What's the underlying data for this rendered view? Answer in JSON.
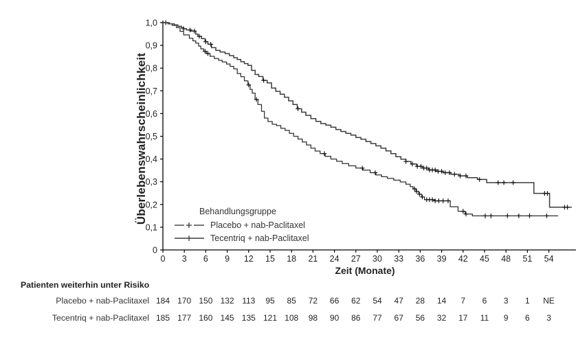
{
  "chart_data": {
    "type": "line",
    "subtype": "kaplan-meier-step",
    "title": "",
    "xlabel": "Zeit (Monate)",
    "ylabel": "Überlebenswahrscheinlichkeit",
    "xlim": [
      0,
      57.8
    ],
    "ylim": [
      0,
      1.0
    ],
    "grid": false,
    "x_ticks": [
      0,
      3,
      6,
      9,
      12,
      15,
      18,
      21,
      24,
      27,
      30,
      33,
      36,
      39,
      42,
      45,
      48,
      51,
      54
    ],
    "x_tick_labels": [
      "0",
      "3",
      "6",
      "9",
      "12",
      "15",
      "18",
      "21",
      "24",
      "27",
      "30",
      "33",
      "36",
      "39",
      "42",
      "45",
      "48",
      "51",
      "54"
    ],
    "y_ticks": [
      0,
      0.1,
      0.2,
      0.3,
      0.4,
      0.5,
      0.6,
      0.7,
      0.8,
      0.9,
      1.0
    ],
    "y_tick_labels": [
      "0",
      "0,1",
      "0,2",
      "0,3",
      "0,4",
      "0,5",
      "0,6",
      "0,7",
      "0,8",
      "0,9",
      "1,0"
    ],
    "legend": {
      "title": "Behandlungsgruppe",
      "position": "inside-lower-left"
    },
    "series": [
      {
        "name": "Placebo + nab-Paclitaxel",
        "legend_line_style": "dashed",
        "color": "#2e2e2e",
        "width": 1.25,
        "steps": [
          [
            0,
            1.0
          ],
          [
            0.7,
            0.995
          ],
          [
            1.3,
            0.988
          ],
          [
            1.9,
            0.978
          ],
          [
            2.4,
            0.962
          ],
          [
            2.9,
            0.946
          ],
          [
            3.7,
            0.931
          ],
          [
            4.2,
            0.92
          ],
          [
            4.6,
            0.91
          ],
          [
            5.0,
            0.897
          ],
          [
            5.3,
            0.885
          ],
          [
            5.7,
            0.874
          ],
          [
            6.1,
            0.864
          ],
          [
            6.6,
            0.852
          ],
          [
            7.2,
            0.842
          ],
          [
            7.8,
            0.834
          ],
          [
            8.3,
            0.827
          ],
          [
            8.9,
            0.818
          ],
          [
            9.4,
            0.808
          ],
          [
            9.9,
            0.797
          ],
          [
            10.4,
            0.776
          ],
          [
            10.9,
            0.762
          ],
          [
            11.4,
            0.744
          ],
          [
            11.9,
            0.726
          ],
          [
            12.2,
            0.706
          ],
          [
            12.5,
            0.69
          ],
          [
            12.9,
            0.662
          ],
          [
            13.3,
            0.64
          ],
          [
            13.8,
            0.61
          ],
          [
            14.2,
            0.58
          ],
          [
            14.7,
            0.565
          ],
          [
            15.3,
            0.553
          ],
          [
            15.9,
            0.547
          ],
          [
            16.5,
            0.535
          ],
          [
            17.1,
            0.526
          ],
          [
            17.7,
            0.513
          ],
          [
            18.3,
            0.5
          ],
          [
            18.9,
            0.488
          ],
          [
            19.5,
            0.475
          ],
          [
            20.1,
            0.462
          ],
          [
            20.7,
            0.448
          ],
          [
            21.3,
            0.435
          ],
          [
            22.0,
            0.424
          ],
          [
            22.7,
            0.412
          ],
          [
            23.5,
            0.4
          ],
          [
            24.3,
            0.39
          ],
          [
            25.1,
            0.38
          ],
          [
            26.0,
            0.37
          ],
          [
            27.0,
            0.36
          ],
          [
            28.0,
            0.351
          ],
          [
            29.0,
            0.34
          ],
          [
            29.8,
            0.33
          ],
          [
            30.6,
            0.322
          ],
          [
            31.4,
            0.315
          ],
          [
            32.3,
            0.307
          ],
          [
            33.2,
            0.299
          ],
          [
            34.0,
            0.289
          ],
          [
            34.6,
            0.279
          ],
          [
            35.0,
            0.269
          ],
          [
            35.4,
            0.257
          ],
          [
            35.8,
            0.245
          ],
          [
            36.2,
            0.233
          ],
          [
            36.6,
            0.221
          ],
          [
            38.0,
            0.216
          ],
          [
            40.2,
            0.19
          ],
          [
            41.3,
            0.17
          ],
          [
            42.3,
            0.158
          ],
          [
            43.3,
            0.15
          ],
          [
            55.3,
            0.15
          ]
        ],
        "censor_months": [
          0.4,
          5.9,
          6.3,
          12.0,
          13.1,
          22.6,
          27.9,
          29.7,
          35.2,
          35.5,
          35.9,
          36.3,
          36.9,
          37.3,
          37.7,
          38.1,
          38.6,
          39.2,
          39.9,
          42.0,
          42.4,
          45.1,
          45.9,
          48.2,
          49.8,
          51.3,
          53.7
        ]
      },
      {
        "name": "Tecentriq + nab-Paclitaxel",
        "legend_line_style": "solid",
        "color": "#3c3c3c",
        "width": 1.5,
        "steps": [
          [
            0,
            1.0
          ],
          [
            0.9,
            0.995
          ],
          [
            1.6,
            0.99
          ],
          [
            2.1,
            0.984
          ],
          [
            2.6,
            0.978
          ],
          [
            2.9,
            0.973
          ],
          [
            3.3,
            0.968
          ],
          [
            3.9,
            0.963
          ],
          [
            4.6,
            0.95
          ],
          [
            4.9,
            0.94
          ],
          [
            5.4,
            0.93
          ],
          [
            5.9,
            0.916
          ],
          [
            6.3,
            0.905
          ],
          [
            6.8,
            0.89
          ],
          [
            7.4,
            0.878
          ],
          [
            8.0,
            0.871
          ],
          [
            8.7,
            0.864
          ],
          [
            9.3,
            0.855
          ],
          [
            9.9,
            0.846
          ],
          [
            10.4,
            0.838
          ],
          [
            10.9,
            0.828
          ],
          [
            11.4,
            0.82
          ],
          [
            11.9,
            0.812
          ],
          [
            12.4,
            0.79
          ],
          [
            12.9,
            0.772
          ],
          [
            13.4,
            0.763
          ],
          [
            14.0,
            0.746
          ],
          [
            14.6,
            0.735
          ],
          [
            15.2,
            0.712
          ],
          [
            15.8,
            0.698
          ],
          [
            16.4,
            0.685
          ],
          [
            17.0,
            0.672
          ],
          [
            17.6,
            0.656
          ],
          [
            18.2,
            0.64
          ],
          [
            18.8,
            0.621
          ],
          [
            19.4,
            0.606
          ],
          [
            20.0,
            0.592
          ],
          [
            20.7,
            0.578
          ],
          [
            21.4,
            0.566
          ],
          [
            22.1,
            0.556
          ],
          [
            22.8,
            0.549
          ],
          [
            23.5,
            0.54
          ],
          [
            24.2,
            0.53
          ],
          [
            24.9,
            0.521
          ],
          [
            25.6,
            0.513
          ],
          [
            26.3,
            0.505
          ],
          [
            27.0,
            0.495
          ],
          [
            27.7,
            0.487
          ],
          [
            28.4,
            0.477
          ],
          [
            29.1,
            0.468
          ],
          [
            29.8,
            0.458
          ],
          [
            30.5,
            0.448
          ],
          [
            31.2,
            0.436
          ],
          [
            31.9,
            0.424
          ],
          [
            32.6,
            0.41
          ],
          [
            33.3,
            0.399
          ],
          [
            34.0,
            0.389
          ],
          [
            34.7,
            0.378
          ],
          [
            35.5,
            0.368
          ],
          [
            36.3,
            0.36
          ],
          [
            37.2,
            0.352
          ],
          [
            38.2,
            0.346
          ],
          [
            39.2,
            0.34
          ],
          [
            40.3,
            0.333
          ],
          [
            41.4,
            0.326
          ],
          [
            42.6,
            0.318
          ],
          [
            44.0,
            0.31
          ],
          [
            45.3,
            0.296
          ],
          [
            51.9,
            0.249
          ],
          [
            54.1,
            0.188
          ],
          [
            57.2,
            0.188
          ]
        ],
        "censor_months": [
          2.9,
          3.8,
          4.4,
          5.1,
          6.0,
          6.7,
          14.1,
          18.9,
          34.0,
          34.9,
          35.6,
          36.1,
          36.5,
          36.9,
          37.3,
          37.7,
          38.1,
          38.5,
          39.0,
          39.5,
          40.1,
          40.8,
          41.6,
          42.4,
          44.3,
          46.9,
          47.7,
          49.0,
          53.4,
          53.8,
          56.2,
          56.6
        ]
      }
    ],
    "risk_table": {
      "header": "Patienten weiterhin unter Risiko",
      "times": [
        0,
        3,
        6,
        9,
        12,
        15,
        18,
        21,
        24,
        27,
        30,
        33,
        36,
        39,
        42,
        45,
        48,
        51,
        54
      ],
      "rows": [
        {
          "label": "Placebo + nab-Paclitaxel",
          "counts": [
            "184",
            "170",
            "150",
            "132",
            "113",
            "95",
            "85",
            "72",
            "66",
            "62",
            "54",
            "47",
            "28",
            "14",
            "7",
            "6",
            "3",
            "1",
            "NE"
          ]
        },
        {
          "label": "Tecentriq + nab-Paclitaxel",
          "counts": [
            "185",
            "177",
            "160",
            "145",
            "135",
            "121",
            "108",
            "98",
            "90",
            "86",
            "77",
            "67",
            "56",
            "32",
            "17",
            "11",
            "9",
            "6",
            "3"
          ]
        }
      ]
    }
  }
}
